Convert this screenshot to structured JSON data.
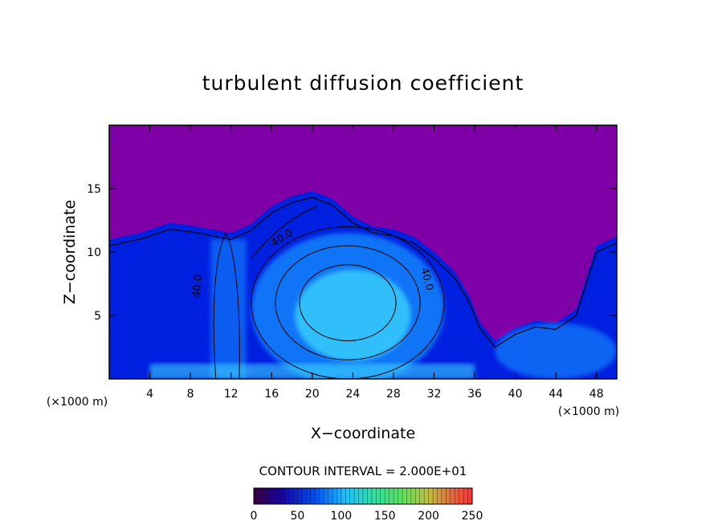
{
  "chart_data": {
    "type": "heatmap",
    "title": "turbulent diffusion coefficient",
    "xlabel": "X−coordinate",
    "ylabel": "Z−coordinate",
    "x_unit": "(×1000 m)",
    "y_unit": "(×1000 m)",
    "xlim": [
      0,
      50
    ],
    "ylim": [
      0,
      20
    ],
    "x_ticks": [
      4,
      8,
      12,
      16,
      20,
      24,
      28,
      32,
      36,
      40,
      44,
      48
    ],
    "x_tick_labels": [
      "4",
      "8",
      "12",
      "16",
      "20",
      "24",
      "28",
      "32",
      "36",
      "40",
      "44",
      "48"
    ],
    "y_ticks": [
      5,
      10,
      15
    ],
    "y_tick_labels": [
      "5",
      "10",
      "15"
    ],
    "contour_interval_text": "CONTOUR INTERVAL = 2.000E+01",
    "contour_interval": 20,
    "contour_labels": [
      {
        "text": "40.0",
        "x": 17.2,
        "z": 10.9,
        "angle": -32
      },
      {
        "text": "40.0",
        "x": 9.0,
        "z": 7.3,
        "angle": -85
      },
      {
        "text": "40.0",
        "x": 31.0,
        "z": 7.8,
        "angle": 75
      }
    ],
    "colorbar": {
      "min": 0,
      "max": 250,
      "ticks": [
        0,
        50,
        100,
        150,
        200,
        250
      ],
      "tick_labels": [
        "0",
        "50",
        "100",
        "150",
        "200",
        "250"
      ]
    },
    "field": {
      "background_value": 0,
      "description_free": true,
      "cloud_top_left": [
        [
          0,
          11
        ],
        [
          3,
          11.5
        ],
        [
          6,
          12.3
        ],
        [
          8,
          12.1
        ],
        [
          10,
          11.8
        ],
        [
          12,
          11.5
        ],
        [
          14,
          12.2
        ],
        [
          16,
          13.6
        ],
        [
          18,
          14.4
        ],
        [
          20,
          14.8
        ],
        [
          22,
          14.2
        ],
        [
          24,
          12.8
        ],
        [
          26,
          12.0
        ],
        [
          28,
          11.8
        ],
        [
          30,
          11.2
        ],
        [
          32,
          10.0
        ],
        [
          34,
          8.5
        ],
        [
          35.5,
          6.5
        ],
        [
          36.5,
          4.5
        ],
        [
          38,
          3.0
        ]
      ],
      "cloud_top_right": [
        [
          38,
          3.0
        ],
        [
          40,
          4.0
        ],
        [
          42,
          4.6
        ],
        [
          44,
          4.4
        ],
        [
          46,
          5.5
        ],
        [
          47,
          8.0
        ],
        [
          48,
          10.5
        ],
        [
          50,
          11.2
        ]
      ],
      "vortex_center": [
        23.5,
        5.5
      ],
      "vortex_radius": [
        9.5,
        6.0
      ]
    }
  },
  "colors": {
    "background_field": "#8000a8",
    "low": "#0020e0",
    "mid": "#1890ff",
    "high": "#40e0ff",
    "contour": "#000000"
  }
}
